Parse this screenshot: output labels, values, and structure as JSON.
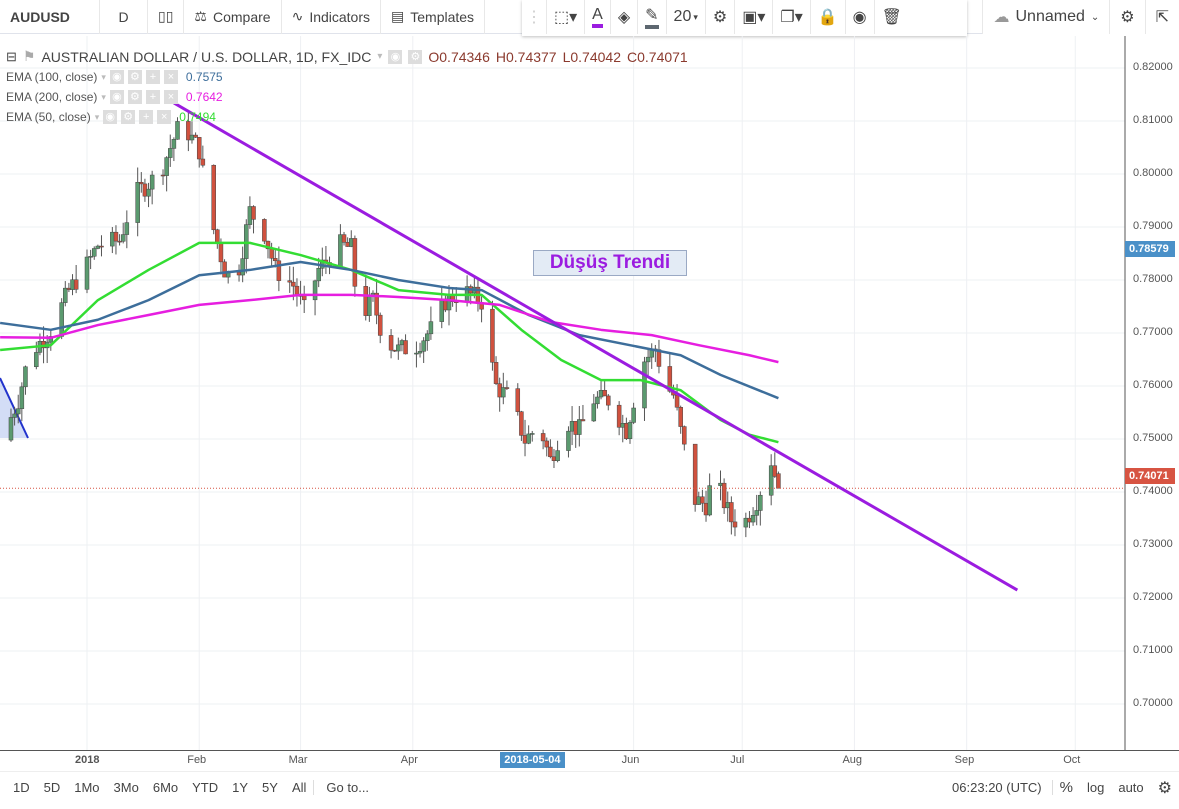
{
  "toolbar": {
    "symbol": "AUDUSD",
    "interval": "D",
    "compare": "Compare",
    "indicators": "Indicators",
    "templates": "Templates",
    "font_size": "20",
    "layout_name": "Unnamed",
    "text_color": "#9b1ce0",
    "line_color": "#5d6770"
  },
  "legend": {
    "title": "AUSTRALIAN DOLLAR / U.S. DOLLAR, 1D, FX_IDC",
    "open": "O0.74346",
    "high": "H0.74377",
    "low": "L0.74042",
    "close": "C0.74071"
  },
  "indicators": [
    {
      "label": "EMA (100, close)",
      "value": "0.7575",
      "color": "#3d6e9b"
    },
    {
      "label": "EMA (200, close)",
      "value": "0.7642",
      "color": "#e61ee0"
    },
    {
      "label": "EMA (50, close)",
      "value": "0.7494",
      "color": "#33dd33"
    }
  ],
  "price_axis": {
    "ticks": [
      "0.82000",
      "0.81000",
      "0.80000",
      "0.79000",
      "0.78000",
      "0.77000",
      "0.76000",
      "0.75000",
      "0.74000",
      "0.73000",
      "0.72000",
      "0.71000",
      "0.70000"
    ],
    "crosshair_label": "0.78579",
    "last_price_label": "0.74071",
    "last_price": 0.74071,
    "crosshair_price": 0.78579,
    "last_color": "#d75442",
    "crosshair_color": "#4a90c8"
  },
  "time_axis": {
    "ticks": [
      [
        "2018",
        "2018-01-01"
      ],
      [
        "Feb",
        "2018-02-01"
      ],
      [
        "Mar",
        "2018-03-01"
      ],
      [
        "Apr",
        "2018-04-01"
      ],
      [
        "Jun",
        "2018-06-01"
      ],
      [
        "Jul",
        "2018-07-01"
      ],
      [
        "Aug",
        "2018-08-01"
      ],
      [
        "Sep",
        "2018-09-01"
      ],
      [
        "Oct",
        "2018-10-01"
      ]
    ],
    "crosshair_label": "2018-05-04",
    "crosshair_date": "2018-05-04"
  },
  "annotation": {
    "text": "Düşüş Trendi",
    "color": "#9b1ce0"
  },
  "trend_line": {
    "from": [
      "2018-01-25",
      0.8134
    ],
    "to": [
      "2018-09-15",
      0.7215
    ],
    "color": "#9b1ce0"
  },
  "chart_data": {
    "type": "candlestick",
    "ylim": [
      0.694,
      0.826
    ],
    "up_color": "#5b9a6f",
    "down_color": "#d0513e",
    "close_keypoints": [
      [
        "2017-12-09",
        0.7508
      ],
      [
        "2017-12-13",
        0.7574
      ],
      [
        "2017-12-16",
        0.7658
      ],
      [
        "2017-12-22",
        0.7706
      ],
      [
        "2017-12-27",
        0.778
      ],
      [
        "2018-01-01",
        0.7828
      ],
      [
        "2018-01-04",
        0.7866
      ],
      [
        "2018-01-10",
        0.7875
      ],
      [
        "2018-01-14",
        0.796
      ],
      [
        "2018-01-21",
        0.8
      ],
      [
        "2018-01-27",
        0.81
      ],
      [
        "2018-02-01",
        0.8045
      ],
      [
        "2018-02-04",
        0.792
      ],
      [
        "2018-02-08",
        0.782
      ],
      [
        "2018-02-11",
        0.779
      ],
      [
        "2018-02-15",
        0.793
      ],
      [
        "2018-02-19",
        0.789
      ],
      [
        "2018-02-22",
        0.782
      ],
      [
        "2018-02-27",
        0.779
      ],
      [
        "2018-03-02",
        0.7743
      ],
      [
        "2018-03-06",
        0.782
      ],
      [
        "2018-03-12",
        0.7866
      ],
      [
        "2018-03-15",
        0.786
      ],
      [
        "2018-03-17",
        0.7725
      ],
      [
        "2018-03-21",
        0.7762
      ],
      [
        "2018-03-24",
        0.7687
      ],
      [
        "2018-03-28",
        0.7668
      ],
      [
        "2018-04-02",
        0.7677
      ],
      [
        "2018-04-06",
        0.7706
      ],
      [
        "2018-04-10",
        0.776
      ],
      [
        "2018-04-15",
        0.778
      ],
      [
        "2018-04-20",
        0.776
      ],
      [
        "2018-04-22",
        0.767
      ],
      [
        "2018-04-24",
        0.76
      ],
      [
        "2018-04-28",
        0.7574
      ],
      [
        "2018-05-02",
        0.7498
      ],
      [
        "2018-05-06",
        0.7526
      ],
      [
        "2018-05-09",
        0.746
      ],
      [
        "2018-05-13",
        0.7536
      ],
      [
        "2018-05-17",
        0.7517
      ],
      [
        "2018-05-21",
        0.7574
      ],
      [
        "2018-05-25",
        0.7574
      ],
      [
        "2018-05-30",
        0.7517
      ],
      [
        "2018-06-01",
        0.7574
      ],
      [
        "2018-06-04",
        0.7649
      ],
      [
        "2018-06-07",
        0.767
      ],
      [
        "2018-06-10",
        0.76
      ],
      [
        "2018-06-12",
        0.7583
      ],
      [
        "2018-06-15",
        0.748
      ],
      [
        "2018-06-18",
        0.7385
      ],
      [
        "2018-06-21",
        0.7376
      ],
      [
        "2018-06-23",
        0.7432
      ],
      [
        "2018-06-28",
        0.7347
      ],
      [
        "2018-07-02",
        0.7347
      ],
      [
        "2018-07-05",
        0.7385
      ],
      [
        "2018-07-07",
        0.7423
      ],
      [
        "2018-07-09",
        0.746
      ],
      [
        "2018-07-11",
        0.7407
      ]
    ],
    "ema_series": [
      {
        "name": "EMA (50, close)",
        "color": "#33dd33",
        "points": [
          [
            "2017-12-08",
            0.7668
          ],
          [
            "2017-12-22",
            0.7677
          ],
          [
            "2018-01-04",
            0.7762
          ],
          [
            "2018-01-18",
            0.7819
          ],
          [
            "2018-02-01",
            0.787
          ],
          [
            "2018-02-15",
            0.787
          ],
          [
            "2018-03-01",
            0.7847
          ],
          [
            "2018-03-15",
            0.7819
          ],
          [
            "2018-03-28",
            0.7781
          ],
          [
            "2018-04-11",
            0.7772
          ],
          [
            "2018-04-20",
            0.7772
          ],
          [
            "2018-05-01",
            0.7706
          ],
          [
            "2018-05-12",
            0.7649
          ],
          [
            "2018-05-23",
            0.7611
          ],
          [
            "2018-06-03",
            0.7611
          ],
          [
            "2018-06-14",
            0.7592
          ],
          [
            "2018-06-25",
            0.7536
          ],
          [
            "2018-07-03",
            0.7508
          ],
          [
            "2018-07-11",
            0.7494
          ]
        ]
      },
      {
        "name": "EMA (100, close)",
        "color": "#3d6e9b",
        "points": [
          [
            "2017-12-08",
            0.7719
          ],
          [
            "2017-12-22",
            0.7706
          ],
          [
            "2018-01-04",
            0.7725
          ],
          [
            "2018-01-18",
            0.7762
          ],
          [
            "2018-02-01",
            0.7809
          ],
          [
            "2018-02-15",
            0.7819
          ],
          [
            "2018-03-01",
            0.7834
          ],
          [
            "2018-03-15",
            0.7819
          ],
          [
            "2018-03-28",
            0.78
          ],
          [
            "2018-04-11",
            0.7785
          ],
          [
            "2018-04-20",
            0.7781
          ],
          [
            "2018-05-03",
            0.7734
          ],
          [
            "2018-05-17",
            0.7696
          ],
          [
            "2018-05-31",
            0.7677
          ],
          [
            "2018-06-14",
            0.7658
          ],
          [
            "2018-06-25",
            0.7621
          ],
          [
            "2018-07-11",
            0.7577
          ]
        ]
      },
      {
        "name": "EMA (200, close)",
        "color": "#e61ee0",
        "points": [
          [
            "2017-12-08",
            0.7692
          ],
          [
            "2017-12-22",
            0.7691
          ],
          [
            "2018-01-04",
            0.7715
          ],
          [
            "2018-01-18",
            0.7734
          ],
          [
            "2018-02-01",
            0.7753
          ],
          [
            "2018-02-15",
            0.7762
          ],
          [
            "2018-03-01",
            0.7772
          ],
          [
            "2018-03-15",
            0.7772
          ],
          [
            "2018-03-28",
            0.7768
          ],
          [
            "2018-04-11",
            0.7762
          ],
          [
            "2018-04-25",
            0.7753
          ],
          [
            "2018-05-09",
            0.7721
          ],
          [
            "2018-05-23",
            0.7706
          ],
          [
            "2018-06-06",
            0.7696
          ],
          [
            "2018-06-19",
            0.7677
          ],
          [
            "2018-07-03",
            0.7658
          ],
          [
            "2018-07-11",
            0.7645
          ]
        ]
      }
    ]
  },
  "bottom_bar": {
    "ranges": [
      "1D",
      "5D",
      "1Mo",
      "3Mo",
      "6Mo",
      "YTD",
      "1Y",
      "5Y",
      "All"
    ],
    "goto": "Go to...",
    "clock": "06:23:20 (UTC)",
    "percent": "%",
    "log": "log",
    "auto": "auto"
  }
}
